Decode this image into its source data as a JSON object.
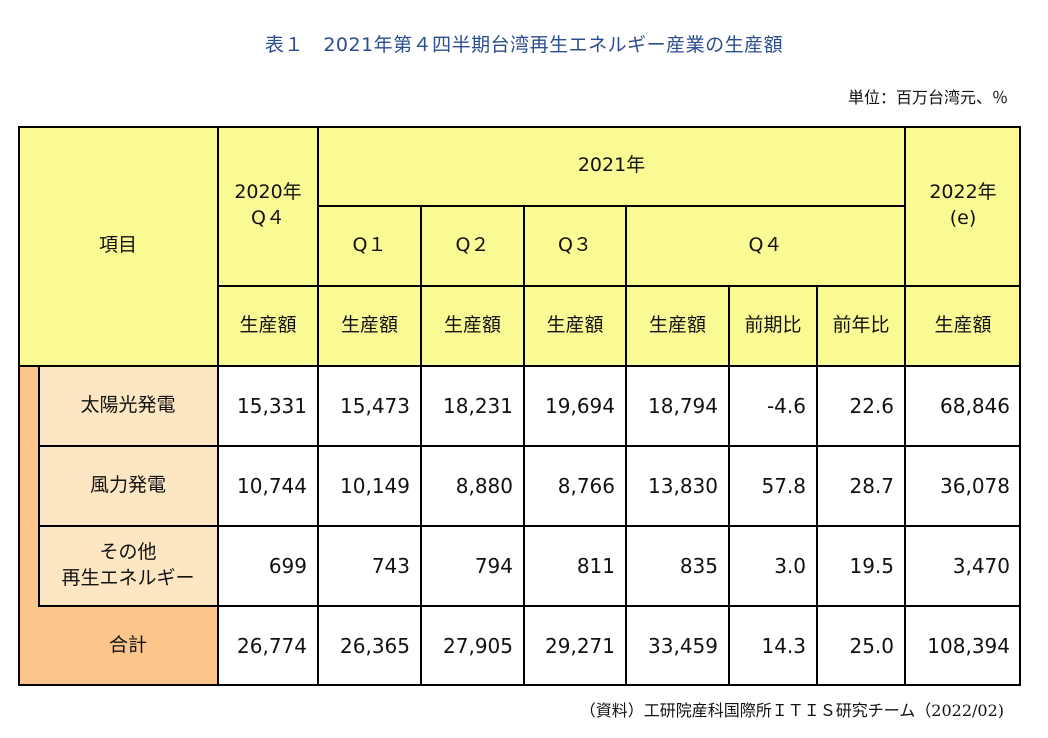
{
  "title": "表１　2021年第４四半期台湾再生エネルギー産業の生産額",
  "unit": "単位：百万台湾元、％",
  "source": "（資料）工研院産科国際所ＩＴＩＳ研究チーム（2022/02)",
  "header": {
    "item": "項目",
    "y2020_line1": "2020年",
    "y2020_line2": "Q４",
    "y2021": "2021年",
    "q1": "Q１",
    "q2": "Q２",
    "q3": "Q３",
    "q4": "Q４",
    "y2022_line1": "2022年",
    "y2022_line2": "(e)",
    "production": "生産額",
    "qoq": "前期比",
    "yoy": "前年比"
  },
  "rows": [
    {
      "label_line1": "太陽光発電",
      "label_line2": "",
      "values": [
        "15,331",
        "15,473",
        "18,231",
        "19,694",
        "18,794",
        "-4.6",
        "22.6",
        "68,846"
      ]
    },
    {
      "label_line1": "風力発電",
      "label_line2": "",
      "values": [
        "10,744",
        "10,149",
        "8,880",
        "8,766",
        "13,830",
        "57.8",
        "28.7",
        "36,078"
      ]
    },
    {
      "label_line1": "その他",
      "label_line2": "再生エネルギー",
      "values": [
        "699",
        "743",
        "794",
        "811",
        "835",
        "3.0",
        "19.5",
        "3,470"
      ]
    },
    {
      "label_line1": "合計",
      "label_line2": "",
      "values": [
        "26,774",
        "26,365",
        "27,905",
        "29,271",
        "33,459",
        "14.3",
        "25.0",
        "108,394"
      ]
    }
  ],
  "colors": {
    "header_yellow": "#fafa94",
    "row_label_peach": "#fde6c2",
    "total_orange": "#fcc58b",
    "title_blue": "#2d4e8e"
  }
}
